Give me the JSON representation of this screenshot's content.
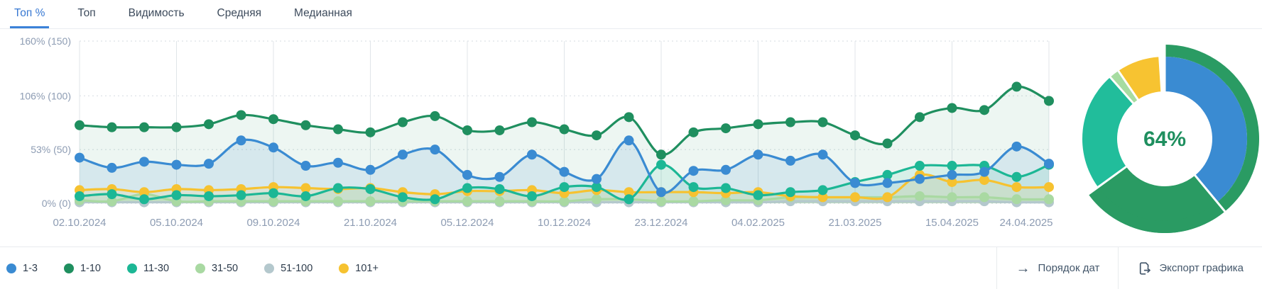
{
  "tabs": {
    "items": [
      {
        "label": "Топ %",
        "active": true
      },
      {
        "label": "Топ",
        "active": false
      },
      {
        "label": "Видимость",
        "active": false
      },
      {
        "label": "Средняя",
        "active": false
      },
      {
        "label": "Медианная",
        "active": false
      }
    ]
  },
  "chart_data": [
    {
      "type": "line",
      "title": "Top % of keywords by position bucket over time",
      "ylabel": "",
      "xlabel": "",
      "ylim": [
        0,
        170
      ],
      "grid": "dotted horizontal at ticks, light vertical at labeled dates",
      "legend_position": "bottom-left",
      "y_ticks": [
        {
          "label": "160% (150)",
          "value": 160
        },
        {
          "label": "106% (100)",
          "value": 106
        },
        {
          "label": "53% (50)",
          "value": 53
        },
        {
          "label": "0% (0)",
          "value": 0
        }
      ],
      "x_labels": [
        "02.10.2024",
        "05.10.2024",
        "09.10.2024",
        "21.10.2024",
        "05.12.2024",
        "10.12.2024",
        "23.12.2024",
        "04.02.2025",
        "21.03.2025",
        "15.04.2025",
        "24.04.2025"
      ],
      "points_per_label": 3,
      "series": [
        {
          "name": "1-3",
          "color": "#3a8bd2",
          "fill": "rgba(58,139,210,0.13)",
          "values": [
            45,
            35,
            41,
            38,
            39,
            62,
            55,
            37,
            40,
            33,
            48,
            53,
            28,
            26,
            48,
            31,
            24,
            62,
            11,
            32,
            33,
            48,
            42,
            48,
            20,
            20,
            24,
            28,
            31,
            56,
            39
          ]
        },
        {
          "name": "1-10",
          "color": "#1f8f5f",
          "fill": "rgba(31,143,95,0.08)",
          "values": [
            77,
            75,
            75,
            75,
            78,
            87,
            83,
            77,
            73,
            70,
            80,
            86,
            72,
            72,
            80,
            73,
            67,
            85,
            48,
            70,
            74,
            78,
            80,
            80,
            67,
            59,
            85,
            94,
            92,
            115,
            101
          ]
        },
        {
          "name": "11-30",
          "color": "#1cb795",
          "fill": "rgba(28,183,149,0.10)",
          "values": [
            7,
            9,
            4,
            8,
            7,
            8,
            10,
            7,
            15,
            14,
            6,
            4,
            15,
            14,
            7,
            16,
            16,
            4,
            38,
            16,
            15,
            8,
            11,
            13,
            21,
            28,
            37,
            37,
            37,
            26,
            38
          ]
        },
        {
          "name": "31-50",
          "color": "#a9d9a2",
          "fill": "rgba(169,217,162,0.28)",
          "values": [
            3,
            2,
            9,
            2,
            2,
            2,
            2,
            2,
            2,
            2,
            2,
            2,
            2,
            2,
            2,
            2,
            4,
            4,
            2,
            2,
            3,
            3,
            6,
            6,
            6,
            6,
            7,
            6,
            6,
            4,
            4
          ]
        },
        {
          "name": "51-100",
          "color": "#b4c8cd",
          "fill": "rgba(180,200,205,0.20)",
          "values": [
            1,
            1,
            1,
            1,
            1,
            1,
            1,
            1,
            1,
            1,
            1,
            1,
            1,
            1,
            1,
            1,
            1,
            1,
            1,
            1,
            1,
            1,
            2,
            2,
            2,
            2,
            2,
            2,
            2,
            1,
            1
          ]
        },
        {
          "name": "101+",
          "color": "#f6c230",
          "fill": "rgba(246,194,48,0.12)",
          "values": [
            13,
            14,
            11,
            14,
            13,
            14,
            16,
            15,
            14,
            15,
            11,
            9,
            12,
            12,
            13,
            10,
            13,
            11,
            11,
            11,
            10,
            11,
            7,
            6,
            6,
            6,
            28,
            21,
            23,
            16,
            16
          ]
        }
      ]
    },
    {
      "type": "pie",
      "title": "Current distribution donut",
      "center_label": "64%",
      "center_label_color": "#1f8f5f",
      "outer_ring": {
        "name": "1-10",
        "percent": 64,
        "color": "#2a9b63"
      },
      "segments": [
        {
          "name": "1-3",
          "percent": 39,
          "color": "#3a8bd2"
        },
        {
          "name": "1-10",
          "percent": 26,
          "color": "#2a9b63",
          "full_depth": true
        },
        {
          "name": "11-30",
          "percent": 23.5,
          "color": "#21bd9b"
        },
        {
          "name": "31-50",
          "percent": 2,
          "color": "#a7dca1"
        },
        {
          "name": "101+",
          "percent": 8.5,
          "color": "#f7c331"
        }
      ],
      "gap_percent": 1
    }
  ],
  "legend": {
    "items": [
      {
        "label": "1-3",
        "color": "#3a8bd2"
      },
      {
        "label": "1-10",
        "color": "#1f8f5f"
      },
      {
        "label": "11-30",
        "color": "#1cb795"
      },
      {
        "label": "31-50",
        "color": "#a9d9a2"
      },
      {
        "label": "51-100",
        "color": "#b4c8cd"
      },
      {
        "label": "101+",
        "color": "#f6c230"
      }
    ]
  },
  "footer": {
    "date_order_label": "Порядок дат",
    "export_label": "Экспорт графика"
  },
  "axis_color": "#8d9cb3"
}
